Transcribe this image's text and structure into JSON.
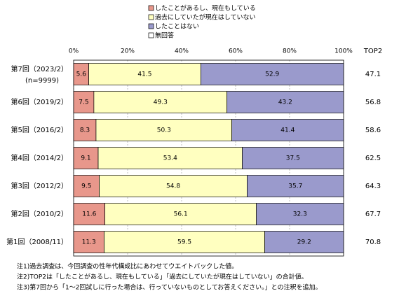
{
  "chart_data": {
    "type": "stacked-bar-horizontal",
    "categories": [
      "第7回（2023/2）",
      "第6回（2019/2）",
      "第5回（2016/2）",
      "第4回（2014/2）",
      "第3回（2012/2）",
      "第2回（2010/2）",
      "第1回（2008/11）"
    ],
    "category_notes": [
      "(n=9999)",
      null,
      null,
      null,
      null,
      null,
      null
    ],
    "series": [
      {
        "name": "したことがあるし、現在もしている",
        "color": "#e8978b",
        "values": [
          5.6,
          7.5,
          8.3,
          9.1,
          9.5,
          11.6,
          11.3
        ]
      },
      {
        "name": "過去にしていたが現在はしていない",
        "color": "#ffffc0",
        "values": [
          41.5,
          49.3,
          50.3,
          53.4,
          54.8,
          56.1,
          59.5
        ]
      },
      {
        "name": "したことはない",
        "color": "#9a9acc",
        "values": [
          52.9,
          43.2,
          41.4,
          37.5,
          35.7,
          32.3,
          29.2
        ]
      },
      {
        "name": "無回答",
        "color": "#ffffff",
        "values": [
          0,
          0,
          0,
          0,
          0,
          0,
          0
        ]
      }
    ],
    "xlim": [
      0,
      100
    ],
    "xticks": [
      {
        "value": 0,
        "label": "0%"
      },
      {
        "value": 20,
        "label": "20%"
      },
      {
        "value": 40,
        "label": "40%"
      },
      {
        "value": 60,
        "label": "60%"
      },
      {
        "value": 80,
        "label": "80%"
      },
      {
        "value": 100,
        "label": "100%"
      }
    ],
    "grid": true,
    "top2": {
      "header": "TOP2",
      "values": [
        47.1,
        56.8,
        58.6,
        62.5,
        64.3,
        67.7,
        70.8
      ]
    },
    "notes": [
      "注1)過去調査は、今回調査の性年代構成比にあわせてウエイトバックした値。",
      "注2)TOP2は「したことがあるし、現在もしている」「過去にしていたが現在はしていない」の合計値。",
      "注3)第7回から「1～2回試しに行った場合は、行っていないものとしてお答えください。」との注釈を追加。"
    ]
  }
}
